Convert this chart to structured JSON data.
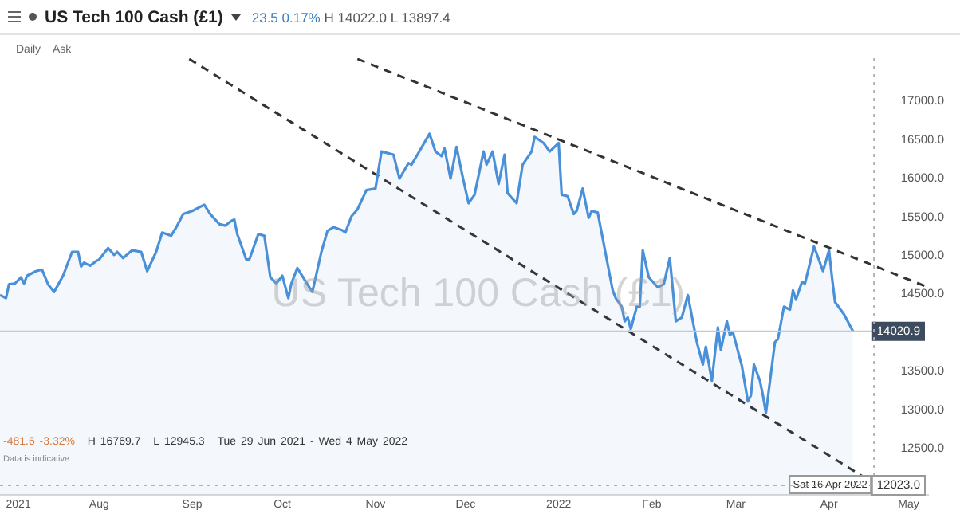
{
  "chart_data": {
    "type": "area",
    "title": "US Tech 100 Cash (£1)",
    "subtitle": "23.5 0.17% H 14022.0 L 13897.4",
    "annotations": [
      "Daily",
      "Ask",
      "US Tech 100 Cash (£1)",
      "-481.6 -3.32% H 16769.7 L 12945.3 Tue 29 Jun 2021 - Wed 4 May 2022",
      "Data is indicative"
    ],
    "xlim": [
      "2021-06-29",
      "2022-05-04"
    ],
    "xticks": [
      {
        "value": "2021-07-01",
        "label": "2021"
      },
      {
        "value": "2021-08-01",
        "label": "Aug"
      },
      {
        "value": "2021-09-01",
        "label": "Sep"
      },
      {
        "value": "2021-10-01",
        "label": "Oct"
      },
      {
        "value": "2021-11-01",
        "label": "Nov"
      },
      {
        "value": "2021-12-01",
        "label": "Dec"
      },
      {
        "value": "2022-01-01",
        "label": "2022"
      },
      {
        "value": "2022-02-01",
        "label": "Feb"
      },
      {
        "value": "2022-03-01",
        "label": "Mar"
      },
      {
        "value": "2022-04-01",
        "label": "Apr"
      },
      {
        "value": "2022-05-01",
        "label": "May"
      }
    ],
    "ylim": [
      11900,
      17560
    ],
    "yticks": [
      {
        "value": 12500,
        "label": "12500.0"
      },
      {
        "value": 13000,
        "label": "13000.0"
      },
      {
        "value": 13500,
        "label": "13500.0"
      },
      {
        "value": 14500,
        "label": "14500.0"
      },
      {
        "value": 15000,
        "label": "15000.0"
      },
      {
        "value": 15500,
        "label": "15500.0"
      },
      {
        "value": 16000,
        "label": "16000.0"
      },
      {
        "value": 16500,
        "label": "16500.0"
      },
      {
        "value": 17000,
        "label": "17000.0"
      }
    ],
    "series": [
      {
        "color": "#4a90d9",
        "x": [
          "2021-06-29",
          "2021-07-01",
          "2021-07-02",
          "2021-07-04",
          "2021-07-06",
          "2021-07-07",
          "2021-07-08",
          "2021-07-11",
          "2021-07-13",
          "2021-07-15",
          "2021-07-17",
          "2021-07-20",
          "2021-07-23",
          "2021-07-25",
          "2021-07-26",
          "2021-07-27",
          "2021-07-29",
          "2021-07-31",
          "2021-08-01",
          "2021-08-04",
          "2021-08-06",
          "2021-08-07",
          "2021-08-09",
          "2021-08-12",
          "2021-08-15",
          "2021-08-17",
          "2021-08-20",
          "2021-08-22",
          "2021-08-25",
          "2021-08-27",
          "2021-08-29",
          "2021-09-01",
          "2021-09-05",
          "2021-09-07",
          "2021-09-10",
          "2021-09-12",
          "2021-09-14",
          "2021-09-15",
          "2021-09-16",
          "2021-09-19",
          "2021-09-20",
          "2021-09-23",
          "2021-09-25",
          "2021-09-27",
          "2021-09-29",
          "2021-10-01",
          "2021-10-03",
          "2021-10-04",
          "2021-10-06",
          "2021-10-10",
          "2021-10-11",
          "2021-10-14",
          "2021-10-16",
          "2021-10-18",
          "2021-10-21",
          "2021-10-22",
          "2021-10-24",
          "2021-10-26",
          "2021-10-29",
          "2021-11-01",
          "2021-11-03",
          "2021-11-07",
          "2021-11-09",
          "2021-11-12",
          "2021-11-13",
          "2021-11-15",
          "2021-11-19",
          "2021-11-21",
          "2021-11-23",
          "2021-11-24",
          "2021-11-26",
          "2021-11-28",
          "2021-11-30",
          "2021-12-02",
          "2021-12-04",
          "2021-12-07",
          "2021-12-08",
          "2021-12-10",
          "2021-12-12",
          "2021-12-14",
          "2021-12-15",
          "2021-12-18",
          "2021-12-20",
          "2021-12-23",
          "2021-12-24",
          "2021-12-27",
          "2021-12-29",
          "2022-01-01",
          "2022-01-02",
          "2022-01-04",
          "2022-01-06",
          "2022-01-07",
          "2022-01-09",
          "2022-01-11",
          "2022-01-12",
          "2022-01-14",
          "2022-01-19",
          "2022-01-20",
          "2022-01-22",
          "2022-01-23",
          "2022-01-24",
          "2022-01-25",
          "2022-01-27",
          "2022-01-28",
          "2022-01-29",
          "2022-01-31",
          "2022-02-03",
          "2022-02-05",
          "2022-02-07",
          "2022-02-09",
          "2022-02-11",
          "2022-02-13",
          "2022-02-16",
          "2022-02-18",
          "2022-02-19",
          "2022-02-21",
          "2022-02-23",
          "2022-02-24",
          "2022-02-26",
          "2022-02-27",
          "2022-02-28",
          "2022-03-03",
          "2022-03-05",
          "2022-03-06",
          "2022-03-07",
          "2022-03-09",
          "2022-03-10",
          "2022-03-11",
          "2022-03-14",
          "2022-03-15",
          "2022-03-17",
          "2022-03-19",
          "2022-03-20",
          "2022-03-21",
          "2022-03-23",
          "2022-03-24",
          "2022-03-27",
          "2022-03-29",
          "2022-03-30",
          "2022-04-01",
          "2022-04-02",
          "2022-04-03",
          "2022-04-06",
          "2022-04-09"
        ],
        "values": [
          14490,
          14450,
          14630,
          14640,
          14720,
          14640,
          14740,
          14800,
          14820,
          14630,
          14530,
          14740,
          15050,
          15050,
          14860,
          14910,
          14870,
          14930,
          14950,
          15100,
          15010,
          15050,
          14970,
          15070,
          15050,
          14800,
          15050,
          15300,
          15260,
          15390,
          15540,
          15580,
          15660,
          15540,
          15410,
          15390,
          15450,
          15470,
          15280,
          14950,
          14950,
          15280,
          15260,
          14720,
          14640,
          14740,
          14450,
          14640,
          14840,
          14590,
          14530,
          15050,
          15320,
          15370,
          15330,
          15300,
          15510,
          15600,
          15850,
          15870,
          16350,
          16310,
          16000,
          16200,
          16180,
          16310,
          16580,
          16350,
          16290,
          16390,
          16000,
          16410,
          16030,
          15680,
          15790,
          16350,
          16180,
          16350,
          15930,
          16310,
          15810,
          15680,
          16180,
          16350,
          16540,
          16460,
          16350,
          16460,
          15790,
          15770,
          15540,
          15580,
          15870,
          15490,
          15580,
          15560,
          14550,
          14450,
          14340,
          14150,
          14200,
          14050,
          14340,
          14340,
          15070,
          14720,
          14590,
          14630,
          14970,
          14150,
          14200,
          14490,
          13880,
          13590,
          13820,
          13380,
          14070,
          13780,
          14150,
          13970,
          14010,
          13570,
          13110,
          13190,
          13590,
          13380,
          13190,
          12960,
          13880,
          13920,
          14340,
          14300,
          14550,
          14430,
          14660,
          14640,
          15120,
          14910,
          14800,
          15070,
          14720,
          14400,
          14240,
          14020.9
        ]
      },
      {
        "type": "line",
        "line_style": "dashed",
        "color": "#333333",
        "x": [
          "2021-10-26",
          "2022-05-04"
        ],
        "values": [
          17550,
          14590
        ]
      },
      {
        "type": "line",
        "line_style": "dashed",
        "color": "#333333",
        "x": [
          "2021-08-31",
          "2022-04-18"
        ],
        "values": [
          17550,
          12000
        ]
      }
    ],
    "ref_lines": [
      {
        "axis": "y",
        "value": 14020.9,
        "label": "14020.9",
        "color": "#c8c8c8",
        "line_style": "solid"
      },
      {
        "axis": "x",
        "value": "2022-04-16",
        "label": "Sat 16 Apr 2022",
        "color": "#b0b0b0",
        "line_style": "dotted"
      },
      {
        "axis": "y",
        "value": 12023,
        "label": "12023.0",
        "color": "#b0b0b0",
        "line_style": "dotted"
      }
    ],
    "marker": "none",
    "grid": false,
    "legend": false
  }
}
